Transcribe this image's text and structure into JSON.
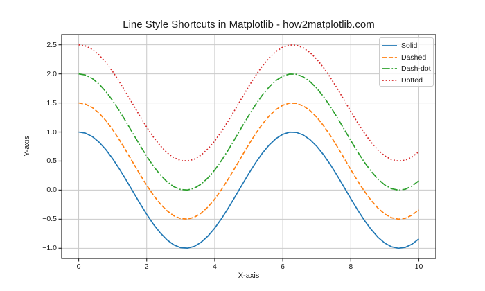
{
  "figure": {
    "background": "#ffffff"
  },
  "chart_data": {
    "type": "line",
    "title": "Line Style Shortcuts in Matplotlib - how2matplotlib.com",
    "xlabel": "X-axis",
    "ylabel": "Y-axis",
    "xlim": [
      -0.5,
      10.5
    ],
    "ylim": [
      -1.175,
      2.675
    ],
    "grid": true,
    "legend_position": "upper right",
    "x_ticks": [
      0,
      2,
      4,
      6,
      8,
      10
    ],
    "x_tick_labels": [
      "0",
      "2",
      "4",
      "6",
      "8",
      "10"
    ],
    "y_ticks": [
      -1.0,
      -0.5,
      0.0,
      0.5,
      1.0,
      1.5,
      2.0,
      2.5
    ],
    "y_tick_labels": [
      "−1.0",
      "−0.5",
      "0.0",
      "0.5",
      "1.0",
      "1.5",
      "2.0",
      "2.5"
    ],
    "x": [
      0,
      0.2,
      0.4,
      0.6,
      0.8,
      1,
      1.2,
      1.4,
      1.6,
      1.8,
      2,
      2.2,
      2.4,
      2.6,
      2.8,
      3,
      3.2,
      3.4,
      3.6,
      3.8,
      4,
      4.2,
      4.4,
      4.6,
      4.8,
      5,
      5.2,
      5.4,
      5.6,
      5.8,
      6,
      6.2,
      6.4,
      6.6,
      6.8,
      7,
      7.2,
      7.4,
      7.6,
      7.8,
      8,
      8.2,
      8.4,
      8.6,
      8.8,
      9,
      9.2,
      9.4,
      9.6,
      9.8,
      10
    ],
    "series": [
      {
        "name": "Solid",
        "linestyle": "solid",
        "color": "#1f77b4",
        "values": [
          1.0,
          0.98,
          0.921,
          0.825,
          0.697,
          0.54,
          0.362,
          0.17,
          -0.029,
          -0.227,
          -0.416,
          -0.589,
          -0.737,
          -0.857,
          -0.942,
          -0.99,
          -0.998,
          -0.967,
          -0.897,
          -0.791,
          -0.654,
          -0.49,
          -0.307,
          -0.112,
          0.087,
          0.284,
          0.469,
          0.635,
          0.776,
          0.886,
          0.96,
          0.997,
          0.993,
          0.95,
          0.869,
          0.754,
          0.608,
          0.439,
          0.251,
          0.054,
          -0.146,
          -0.34,
          -0.519,
          -0.677,
          -0.811,
          -0.911,
          -0.975,
          -1.0,
          -0.985,
          -0.93,
          -0.839
        ]
      },
      {
        "name": "Dashed",
        "linestyle": "dashed",
        "color": "#ff7f0e",
        "values": [
          1.5,
          1.48,
          1.421,
          1.325,
          1.197,
          1.04,
          0.862,
          0.67,
          0.471,
          0.273,
          0.084,
          -0.089,
          -0.237,
          -0.357,
          -0.442,
          -0.49,
          -0.498,
          -0.467,
          -0.397,
          -0.291,
          -0.154,
          0.01,
          0.193,
          0.388,
          0.587,
          0.784,
          0.969,
          1.135,
          1.276,
          1.386,
          1.46,
          1.497,
          1.493,
          1.45,
          1.369,
          1.254,
          1.108,
          0.939,
          0.751,
          0.554,
          0.354,
          0.16,
          -0.019,
          -0.177,
          -0.311,
          -0.411,
          -0.475,
          -0.5,
          -0.485,
          -0.43,
          -0.339
        ]
      },
      {
        "name": "Dash-dot",
        "linestyle": "dashdot",
        "color": "#2ca02c",
        "values": [
          2.0,
          1.98,
          1.921,
          1.825,
          1.697,
          1.54,
          1.362,
          1.17,
          0.971,
          0.773,
          0.584,
          0.411,
          0.263,
          0.143,
          0.058,
          0.01,
          0.002,
          0.033,
          0.103,
          0.209,
          0.346,
          0.51,
          0.693,
          0.888,
          1.087,
          1.284,
          1.469,
          1.635,
          1.776,
          1.886,
          1.96,
          1.997,
          1.993,
          1.95,
          1.869,
          1.754,
          1.608,
          1.439,
          1.251,
          1.054,
          0.854,
          0.66,
          0.481,
          0.323,
          0.189,
          0.089,
          0.025,
          0.0,
          0.015,
          0.07,
          0.161
        ]
      },
      {
        "name": "Dotted",
        "linestyle": "dotted",
        "color": "#d62728",
        "values": [
          2.5,
          2.48,
          2.421,
          2.325,
          2.197,
          2.04,
          1.862,
          1.67,
          1.471,
          1.273,
          1.084,
          0.911,
          0.763,
          0.643,
          0.558,
          0.51,
          0.502,
          0.533,
          0.603,
          0.709,
          0.846,
          1.01,
          1.193,
          1.388,
          1.587,
          1.784,
          1.969,
          2.135,
          2.276,
          2.386,
          2.46,
          2.497,
          2.493,
          2.45,
          2.369,
          2.254,
          2.108,
          1.939,
          1.751,
          1.554,
          1.354,
          1.16,
          0.981,
          0.823,
          0.689,
          0.589,
          0.525,
          0.5,
          0.515,
          0.57,
          0.661
        ]
      }
    ],
    "colors": {
      "grid": "#c9c9c9",
      "spine": "#333333",
      "tick": "#333333",
      "text": "#1a1a1a",
      "legend_border": "#cccccc",
      "background": "#ffffff"
    }
  }
}
